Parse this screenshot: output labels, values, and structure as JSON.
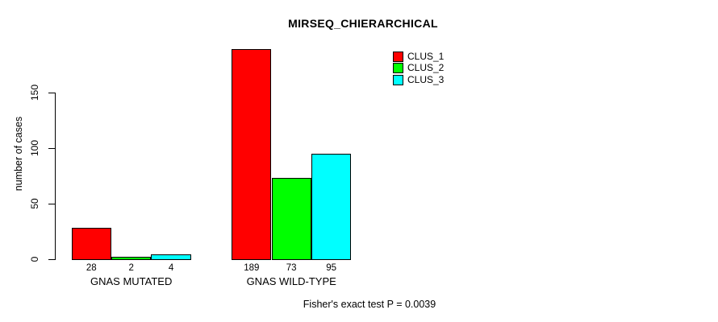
{
  "chart_data": {
    "type": "bar",
    "title": "MIRSEQ_CHIERARCHICAL",
    "ylabel": "number of cases",
    "xlabel": "",
    "categories": [
      "GNAS MUTATED",
      "GNAS WILD-TYPE"
    ],
    "series": [
      {
        "name": "CLUS_1",
        "color": "#FF0000",
        "values": [
          28,
          189
        ]
      },
      {
        "name": "CLUS_2",
        "color": "#00FF00",
        "values": [
          2,
          73
        ]
      },
      {
        "name": "CLUS_3",
        "color": "#00FFFF",
        "values": [
          4,
          95
        ]
      }
    ],
    "yticks": [
      0,
      50,
      100,
      150
    ],
    "ylim": [
      0,
      197
    ],
    "grid": false,
    "bar_value_labels_shown": true,
    "legend_position": "top-right",
    "annotation": "Fisher's exact test P = 0.0039",
    "axis_color": "#000000",
    "background": "#FFFFFF"
  }
}
